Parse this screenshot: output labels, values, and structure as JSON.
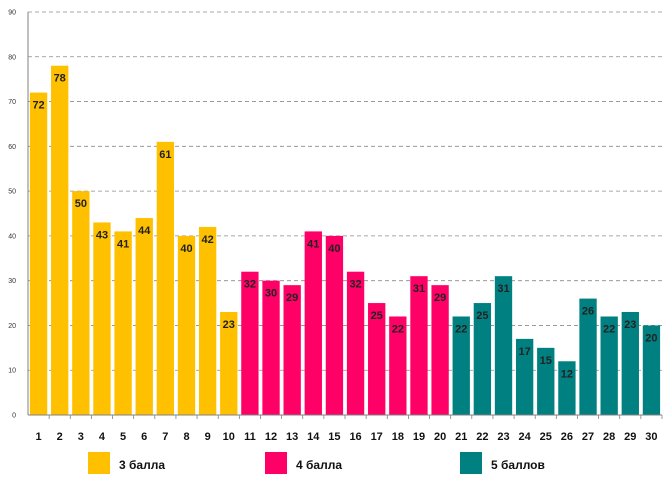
{
  "chart_data": {
    "type": "bar",
    "title": "",
    "xlabel": "",
    "ylabel": "",
    "ylim": [
      0,
      90
    ],
    "yticks": [
      0,
      10,
      20,
      30,
      40,
      50,
      60,
      70,
      80,
      90
    ],
    "grid": true,
    "legend_position": "bottom",
    "categories": [
      "1",
      "2",
      "3",
      "4",
      "5",
      "6",
      "7",
      "8",
      "9",
      "10",
      "11",
      "12",
      "13",
      "14",
      "15",
      "16",
      "17",
      "18",
      "19",
      "20",
      "21",
      "22",
      "23",
      "24",
      "25",
      "26",
      "27",
      "28",
      "29",
      "30"
    ],
    "values": [
      72,
      78,
      50,
      43,
      41,
      44,
      61,
      40,
      42,
      23,
      32,
      30,
      29,
      41,
      40,
      32,
      25,
      22,
      31,
      29,
      22,
      25,
      31,
      17,
      15,
      12,
      26,
      22,
      23,
      20
    ],
    "groups": [
      {
        "name": "3 балла",
        "color": "#FFC000",
        "from": 0,
        "to": 9
      },
      {
        "name": "4 балла",
        "color": "#FF0066",
        "from": 10,
        "to": 19
      },
      {
        "name": "5 баллов",
        "color": "#008080",
        "from": 20,
        "to": 29
      }
    ]
  }
}
